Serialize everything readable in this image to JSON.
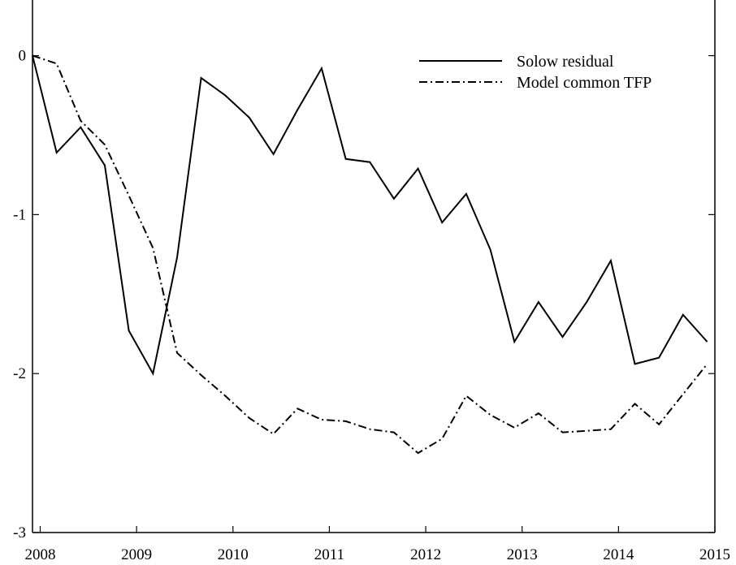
{
  "chart_data": {
    "type": "line",
    "title": "",
    "xlabel": "",
    "ylabel": "",
    "xlim": [
      2007.92,
      2015.0
    ],
    "ylim": [
      -3,
      0.35
    ],
    "x_ticks": [
      {
        "value": 2008,
        "label": "2008"
      },
      {
        "value": 2009,
        "label": "2009"
      },
      {
        "value": 2010,
        "label": "2010"
      },
      {
        "value": 2011,
        "label": "2011"
      },
      {
        "value": 2012,
        "label": "2012"
      },
      {
        "value": 2013,
        "label": "2013"
      },
      {
        "value": 2014,
        "label": "2014"
      },
      {
        "value": 2015,
        "label": "2015"
      }
    ],
    "y_ticks": [
      {
        "value": 0,
        "label": "0"
      },
      {
        "value": -1,
        "label": "-1"
      },
      {
        "value": -2,
        "label": "-2"
      },
      {
        "value": -3,
        "label": "-3"
      }
    ],
    "x": [
      2007.92,
      2008.17,
      2008.42,
      2008.67,
      2008.92,
      2009.17,
      2009.42,
      2009.67,
      2009.92,
      2010.17,
      2010.42,
      2010.67,
      2010.92,
      2011.17,
      2011.42,
      2011.67,
      2011.92,
      2012.17,
      2012.42,
      2012.67,
      2012.92,
      2013.17,
      2013.42,
      2013.67,
      2013.92,
      2014.17,
      2014.42,
      2014.67,
      2014.92
    ],
    "series": [
      {
        "name": "Solow residual",
        "style": "solid",
        "values": [
          0.0,
          -0.61,
          -0.45,
          -0.69,
          -1.73,
          -2.0,
          -1.27,
          -0.14,
          -0.25,
          -0.39,
          -0.62,
          -0.34,
          -0.08,
          -0.65,
          -0.67,
          -0.9,
          -0.71,
          -1.05,
          -0.87,
          -1.22,
          -1.8,
          -1.55,
          -1.77,
          -1.55,
          -1.29,
          -1.94,
          -1.9,
          -1.63,
          -1.8
        ]
      },
      {
        "name": "Model common TFP",
        "style": "dash-dot",
        "values": [
          0.0,
          -0.05,
          -0.41,
          -0.56,
          -0.88,
          -1.21,
          -1.87,
          -2.01,
          -2.14,
          -2.28,
          -2.38,
          -2.22,
          -2.29,
          -2.3,
          -2.35,
          -2.37,
          -2.5,
          -2.41,
          -2.14,
          -2.26,
          -2.34,
          -2.25,
          -2.37,
          -2.36,
          -2.35,
          -2.19,
          -2.32,
          -2.13,
          -1.94
        ]
      }
    ],
    "legend": {
      "placement": "top-right"
    },
    "grid": false
  }
}
